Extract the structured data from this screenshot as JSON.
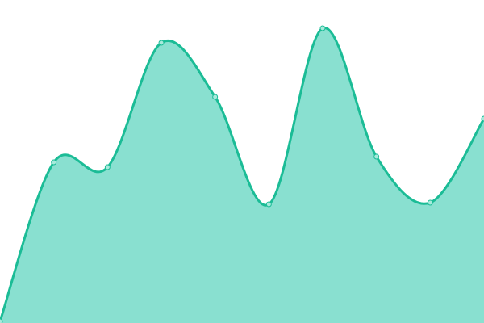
{
  "chart_data": {
    "type": "area",
    "x": [
      0,
      1,
      2,
      3,
      4,
      5,
      6,
      7,
      8,
      9
    ],
    "series": [
      {
        "values": [
          2,
          199,
          193,
          347,
          280,
          147,
          365,
          206,
          149,
          253
        ]
      }
    ],
    "ylim": [
      0,
      400
    ],
    "xlim": [
      0,
      9
    ],
    "grid": false,
    "axes_visible": false,
    "curve": "smooth",
    "markers": true,
    "colors": {
      "stroke": "#1bbc96",
      "fill": "#89e0d0",
      "marker_fill": "#a8eadc"
    }
  }
}
